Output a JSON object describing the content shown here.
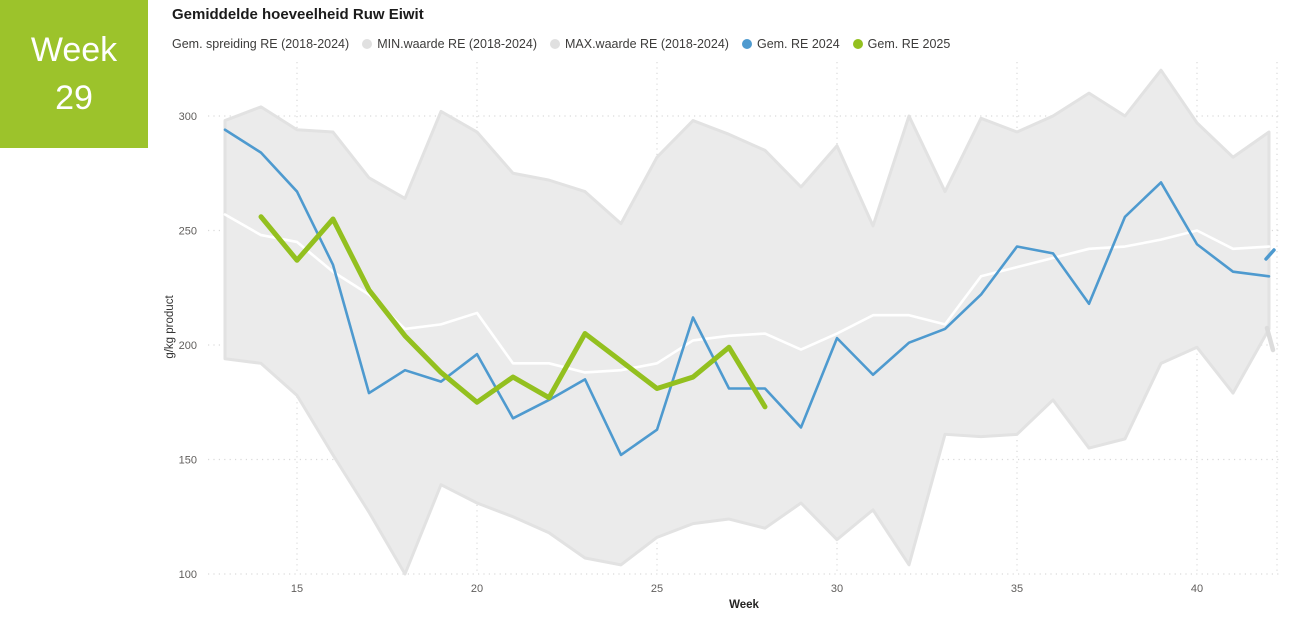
{
  "week_box": {
    "label": "Week",
    "number": "29",
    "bg_color": "#9CC32B",
    "text_color": "#FFFFFF"
  },
  "header": {
    "title": "Gemiddelde hoeveelheid Ruw Eiwit"
  },
  "legend": {
    "items": [
      {
        "label": "Gem. spreiding RE (2018-2024)",
        "marker_color": null
      },
      {
        "label": "MIN.waarde RE (2018-2024)",
        "marker_color": "#E0E0E0"
      },
      {
        "label": "MAX.waarde RE (2018-2024)",
        "marker_color": "#E0E0E0"
      },
      {
        "label": "Gem. RE 2024",
        "marker_color": "#4E9ACF"
      },
      {
        "label": "Gem. RE 2025",
        "marker_color": "#93C01F"
      }
    ]
  },
  "chart_data": {
    "type": "line",
    "title": "Gemiddelde hoeveelheid Ruw Eiwit",
    "xlabel": "Week",
    "ylabel": "g/kg product",
    "x_ticks": [
      15,
      20,
      25,
      30,
      35,
      40
    ],
    "y_ticks": [
      300,
      250,
      200,
      150,
      100
    ],
    "xlim": [
      13,
      42.3
    ],
    "ylim": [
      100,
      300
    ],
    "grid": true,
    "legend_position": "top",
    "colors": {
      "band_fill": "#EBEBEB",
      "band_edge": "#E2E2E2",
      "gridline": "#D9D9D9",
      "tick_label": "#605E5C",
      "axis_title": "#333333",
      "avg_line": "#FFFFFF",
      "line_2024": "#4E9ACF",
      "line_2025": "#93C01F"
    },
    "weeks": [
      13,
      14,
      15,
      16,
      17,
      18,
      19,
      20,
      21,
      22,
      23,
      24,
      25,
      26,
      27,
      28,
      29,
      30,
      31,
      32,
      33,
      34,
      35,
      36,
      37,
      38,
      39,
      40,
      41,
      42
    ],
    "band": {
      "name": "spreiding RE (2018-2024)",
      "max_values": [
        298,
        304,
        294,
        293,
        273,
        264,
        302,
        293,
        275,
        272,
        267,
        253,
        282,
        298,
        292,
        285,
        269,
        287,
        252,
        300,
        267,
        299,
        293,
        300,
        310,
        300,
        320,
        297,
        282,
        293
      ],
      "min_values": [
        194,
        192,
        178,
        152,
        127,
        100,
        139,
        131,
        125,
        118,
        107,
        104,
        116,
        122,
        124,
        120,
        131,
        115,
        128,
        104,
        161,
        160,
        161,
        176,
        155,
        159,
        192,
        199,
        179,
        207
      ]
    },
    "series": [
      {
        "name": "Gem. spreiding RE (2018-2024)",
        "color": "#FFFFFF",
        "width": 2.6,
        "weeks": [
          13,
          14,
          15,
          16,
          17,
          18,
          19,
          20,
          21,
          22,
          23,
          24,
          25,
          26,
          27,
          28,
          29,
          30,
          31,
          32,
          33,
          34,
          35,
          36,
          37,
          38,
          39,
          40,
          41,
          42
        ],
        "values": [
          257,
          248,
          245,
          232,
          222,
          207,
          209,
          214,
          192,
          192,
          188,
          189,
          192,
          202,
          204,
          205,
          198,
          205,
          213,
          213,
          209,
          230,
          234,
          238,
          242,
          243,
          246,
          250,
          242,
          243
        ]
      },
      {
        "name": "Gem. RE 2024",
        "color": "#4E9ACF",
        "width": 2.6,
        "weeks": [
          13,
          14,
          15,
          16,
          17,
          18,
          19,
          20,
          21,
          22,
          23,
          24,
          25,
          26,
          27,
          28,
          29,
          30,
          31,
          32,
          33,
          34,
          35,
          36,
          37,
          38,
          39,
          40,
          41,
          42
        ],
        "values": [
          294,
          284,
          267,
          235,
          179,
          189,
          184,
          196,
          168,
          176,
          185,
          152,
          163,
          212,
          181,
          181,
          164,
          203,
          187,
          201,
          207,
          222,
          243,
          240,
          218,
          256,
          271,
          244,
          232,
          230
        ]
      },
      {
        "name": "Gem. RE 2025",
        "color": "#93C01F",
        "width": 5,
        "weeks": [
          14,
          15,
          16,
          17,
          18,
          19,
          20,
          21,
          22,
          23,
          24,
          25,
          26,
          27,
          28
        ],
        "values": [
          256,
          237,
          255,
          224,
          204,
          188,
          175,
          186,
          177,
          205,
          193,
          181,
          186,
          199,
          173
        ]
      }
    ],
    "right_edge_markers": {
      "blue": "#4E9ACF",
      "gray": "#DCDCDC"
    }
  }
}
